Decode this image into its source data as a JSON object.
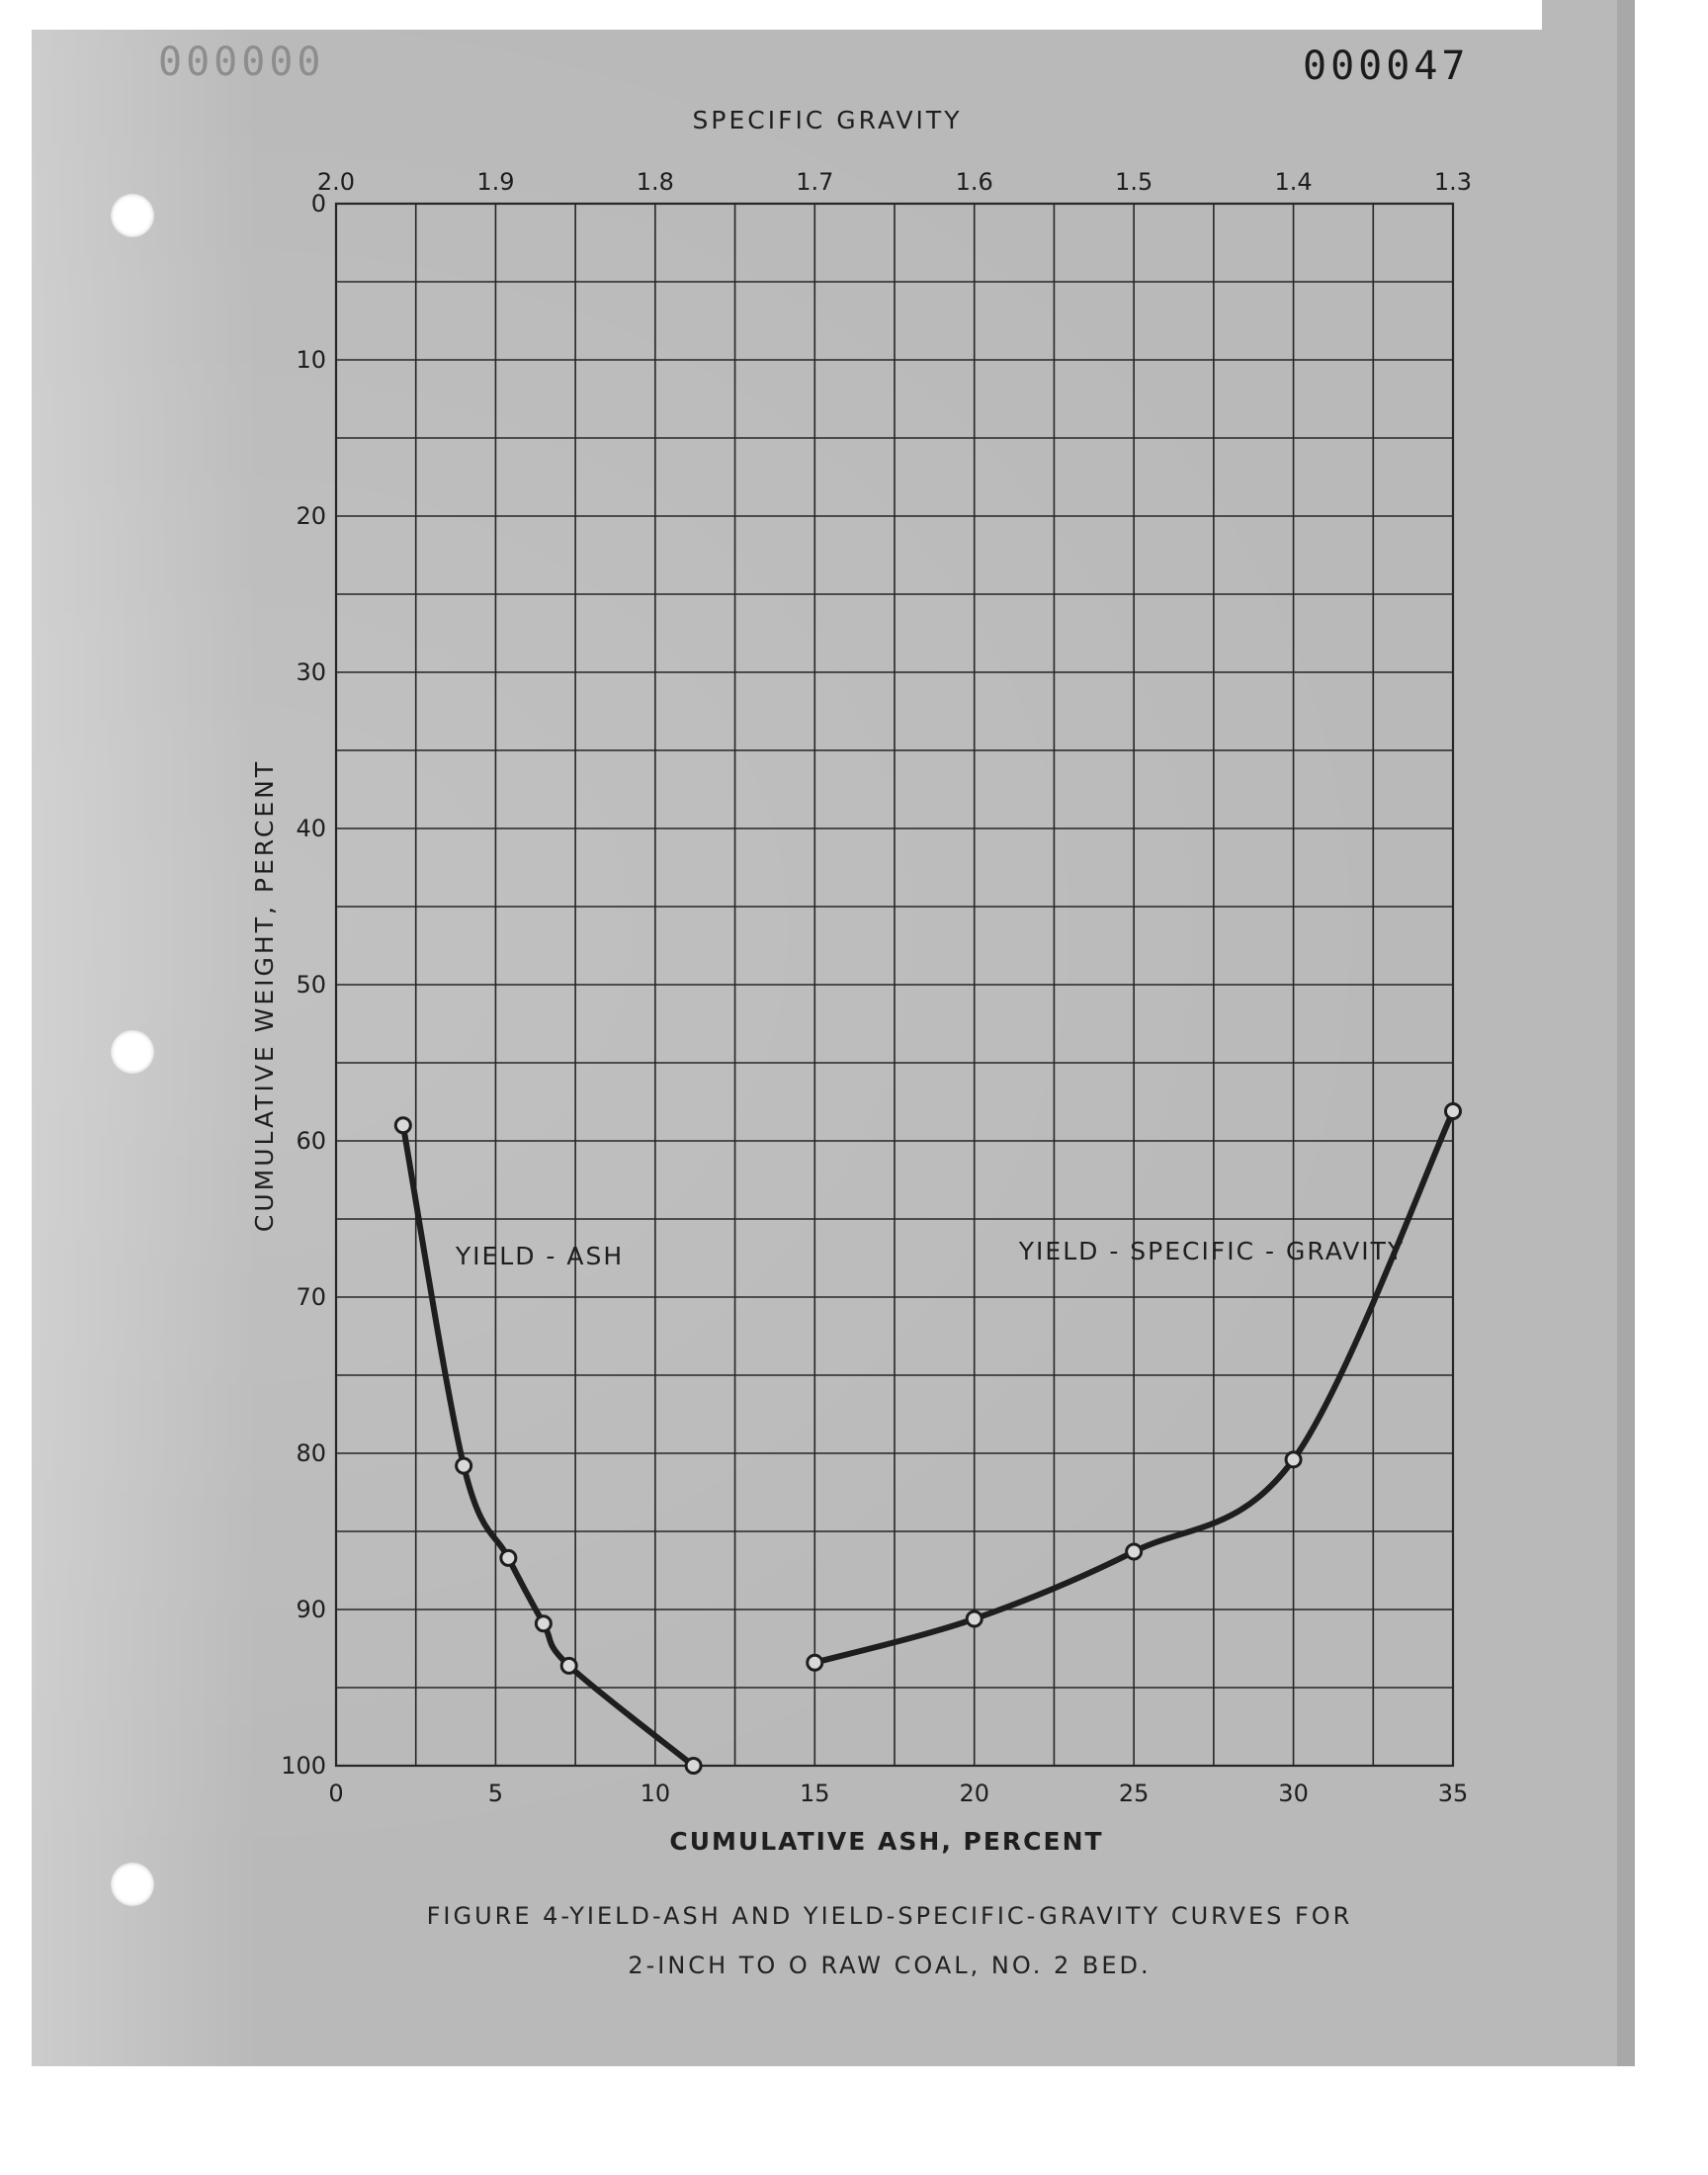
{
  "page": {
    "number": "000047",
    "ghost_number": "000000"
  },
  "caption": {
    "line1": "FIGURE  4-YIELD-ASH  AND  YIELD-SPECIFIC-GRAVITY  CURVES  FOR",
    "line2": "2-INCH  TO  O  RAW  COAL,  NO. 2  BED."
  },
  "colors": {
    "paper": "#b9b9b9",
    "ink": "#1e1e1e",
    "grid": "#262626"
  },
  "chart_data": {
    "type": "line",
    "title": "",
    "xlabel": "CUMULATIVE  ASH, PERCENT",
    "ylabel": "CUMULATIVE  WEIGHT,  PERCENT",
    "x2label": "SPECIFIC  GRAVITY",
    "xlim": [
      0,
      35
    ],
    "ylim": [
      0,
      100
    ],
    "y_inverted": true,
    "x2lim": [
      2.0,
      1.3
    ],
    "xticks": [
      0,
      5,
      10,
      15,
      20,
      25,
      30,
      35
    ],
    "yticks": [
      0,
      10,
      20,
      30,
      40,
      50,
      60,
      70,
      80,
      90,
      100
    ],
    "x2ticks": [
      "2.0",
      "1.9",
      "1.8",
      "1.7",
      "1.6",
      "1.5",
      "1.4",
      "1.3"
    ],
    "grid": true,
    "series": [
      {
        "name": "YIELD - ASH",
        "axis": "bottom",
        "points": [
          [
            2.1,
            59.0
          ],
          [
            4.0,
            80.8
          ],
          [
            5.4,
            86.7
          ],
          [
            6.5,
            90.9
          ],
          [
            7.3,
            93.6
          ],
          [
            11.2,
            100.0
          ]
        ]
      },
      {
        "name": "YIELD - SPECIFIC - GRAVITY",
        "axis": "top",
        "points": [
          [
            1.7,
            93.4
          ],
          [
            1.6,
            90.6
          ],
          [
            1.5,
            86.3
          ],
          [
            1.4,
            80.4
          ],
          [
            1.3,
            58.1
          ]
        ]
      }
    ]
  }
}
